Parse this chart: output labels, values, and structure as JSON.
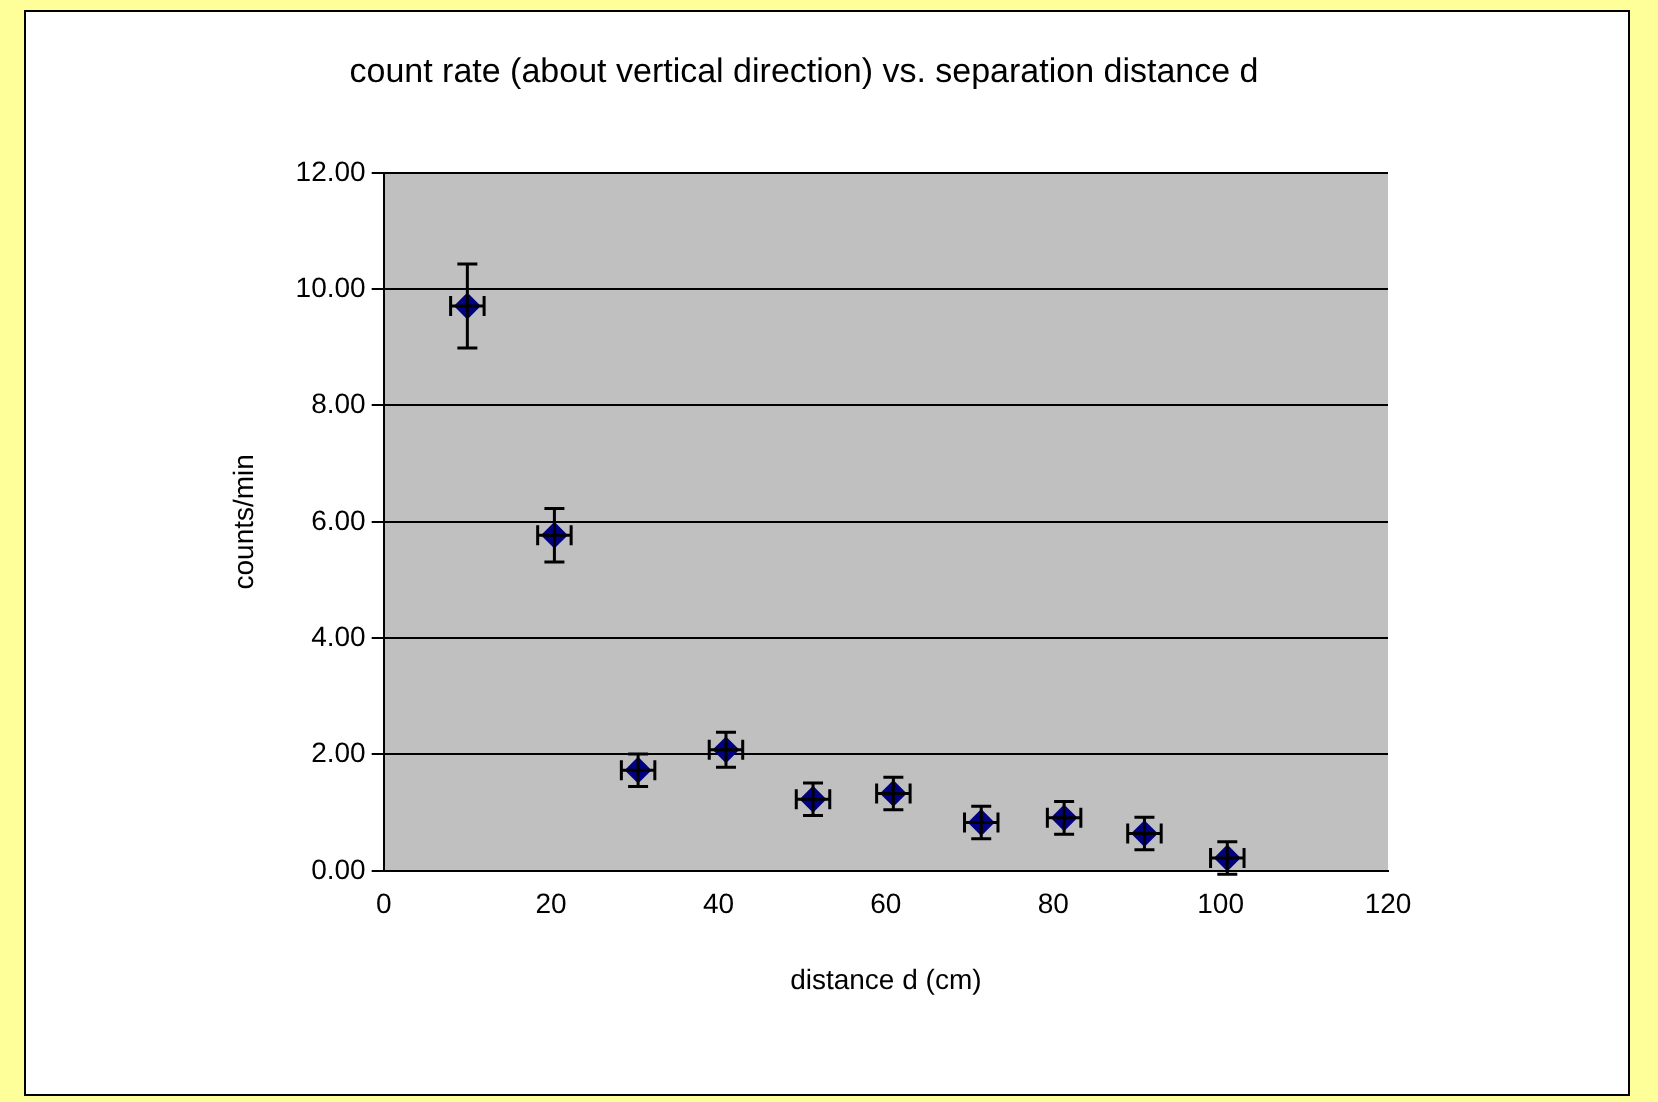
{
  "chart_data": {
    "type": "scatter",
    "title": "count rate (about vertical direction) vs. separation distance d",
    "xlabel": "distance d (cm)",
    "ylabel": "counts/min",
    "x": [
      10,
      20.4,
      30.4,
      40.9,
      51.3,
      60.9,
      71.4,
      81.3,
      90.9,
      100.8
    ],
    "series": [
      {
        "color": "#000080",
        "values": [
          9.71,
          5.77,
          1.73,
          2.08,
          1.23,
          1.33,
          0.83,
          0.91,
          0.64,
          0.22
        ],
        "errors": [
          0.72,
          0.46,
          0.28,
          0.3,
          0.28,
          0.28,
          0.28,
          0.28,
          0.28,
          0.28
        ],
        "xerrors": [
          2,
          2,
          2,
          2,
          2,
          2,
          2,
          2,
          2,
          2
        ]
      }
    ],
    "marker": "diamond",
    "grid": "y",
    "legend": false,
    "xlim": [
      0,
      120
    ],
    "xticks": [
      0,
      20,
      40,
      60,
      80,
      100,
      120
    ],
    "ylim": [
      0,
      12
    ],
    "yticks": [
      {
        "value": 0,
        "label": "0.00"
      },
      {
        "value": 2,
        "label": "2.00"
      },
      {
        "value": 4,
        "label": "4.00"
      },
      {
        "value": 6,
        "label": "6.00"
      },
      {
        "value": 8,
        "label": "8.00"
      },
      {
        "value": 10,
        "label": "10.00"
      },
      {
        "value": 12,
        "label": "12.00"
      }
    ]
  }
}
